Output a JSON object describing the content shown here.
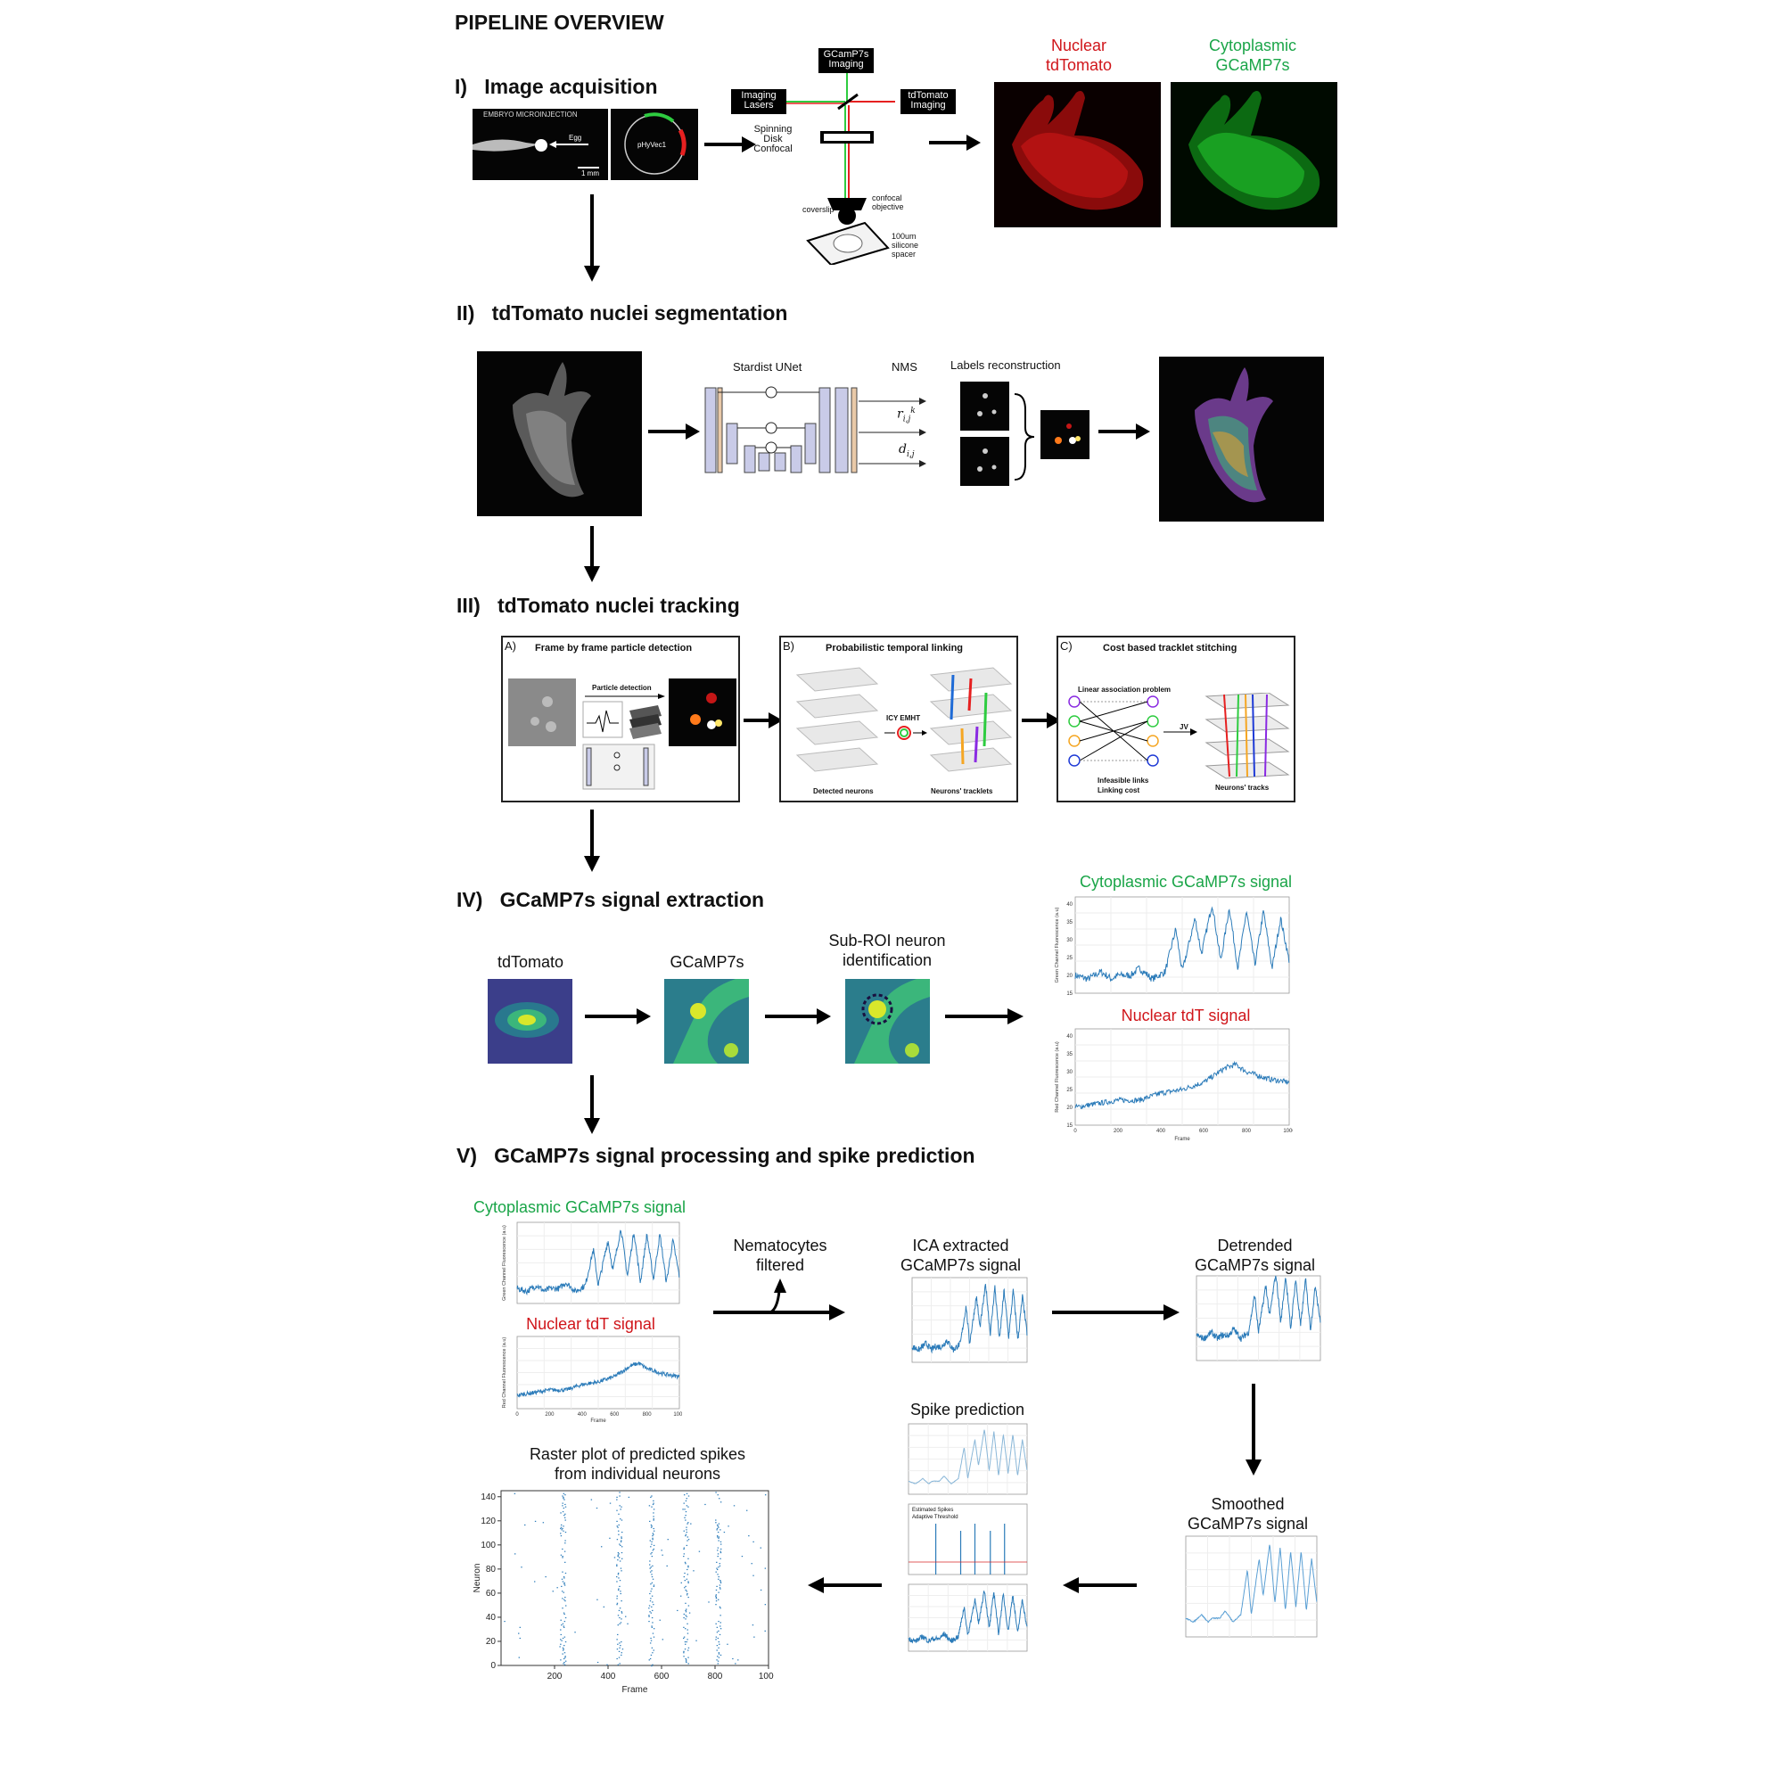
{
  "title": "PIPELINE OVERVIEW",
  "sections": {
    "s1": {
      "num": "I)",
      "label": "Image acquisition"
    },
    "s2": {
      "num": "II)",
      "label": "tdTomato nuclei segmentation"
    },
    "s3": {
      "num": "III)",
      "label": "tdTomato nuclei tracking"
    },
    "s4": {
      "num": "IV)",
      "label": "GCaMP7s signal extraction"
    },
    "s5": {
      "num": "V)",
      "label": "GCaMP7s signal processing and spike prediction"
    }
  },
  "acquisition": {
    "embryo_label": "EMBRYO MICROINJECTION",
    "egg_label": "Egg",
    "scale": "1 mm",
    "plasmid": "pHyVec1",
    "gcamp_imaging": "GCamP7s\nImaging",
    "imaging_lasers": "Imaging\nLasers",
    "tdtomato_imaging": "tdTomato\nImaging",
    "spinning_disk": "Spinning\nDisk\nConfocal",
    "objective": "confocal\nobjective",
    "coverslip": "coverslip",
    "spacer": "100um\nsilicone\nspacer",
    "nuclear_line1": "Nuclear",
    "nuclear_line2": "tdTomato",
    "cyto_line1": "Cytoplasmic",
    "cyto_line2": "GCaMP7s"
  },
  "segmentation": {
    "stardist": "Stardist UNet",
    "nms": "NMS",
    "labels": "Labels reconstruction",
    "r_sym": "r",
    "d_sym": "d"
  },
  "tracking": {
    "a_tag": "A)",
    "a_title": "Frame by frame particle detection",
    "a_sub": "Particle detection",
    "b_tag": "B)",
    "b_title": "Probabilistic temporal linking",
    "b_mid": "ICY EMHT",
    "b_left": "Detected neurons",
    "b_right": "Neurons' tracklets",
    "c_tag": "C)",
    "c_title": "Cost based tracklet stitching",
    "c_sub": "Linear association problem",
    "c_jv": "JV",
    "c_infeasible": "Infeasible links",
    "c_cost": "Linking cost",
    "c_right": "Neurons' tracks"
  },
  "extraction": {
    "tdtomato": "tdTomato",
    "gcamp": "GCaMP7s",
    "subroi": "Sub-ROI neuron\nidentification",
    "cyto_signal": "Cytoplasmic GCaMP7s signal",
    "nuc_signal": "Nuclear tdT signal",
    "x_label": "Frame",
    "y_green": "Green Channel Fluorescence (a.u)",
    "y_red": "Red Channel Fluorescence (a.u)",
    "green_ticks": [
      "15",
      "20",
      "25",
      "30",
      "35",
      "40"
    ],
    "red_ticks": [
      "15",
      "20",
      "25",
      "30",
      "35",
      "40"
    ],
    "x_ticks": [
      "0",
      "200",
      "400",
      "600",
      "800",
      "1000"
    ]
  },
  "processing": {
    "cyto_signal": "Cytoplasmic GCaMP7s signal",
    "nuc_signal": "Nuclear tdT signal",
    "nematocytes": "Nematocytes\nfiltered",
    "ica": "ICA extracted\nGCaMP7s signal",
    "detrended": "Detrended\nGCaMP7s signal",
    "smoothed": "Smoothed\nGCaMP7s signal",
    "spike_pred": "Spike prediction",
    "legend_est": "Estimated Spikes",
    "legend_thr": "Adaptive Threshold",
    "raster_title": "Raster plot of predicted spikes\nfrom individual neurons",
    "raster_x_label": "Frame",
    "raster_y_label": "Neuron"
  },
  "chart_data": [
    {
      "type": "line",
      "title": "Cytoplasmic GCaMP7s signal",
      "xlabel": "",
      "ylabel": "Green Channel Fluorescence (a.u)",
      "xlim": [
        0,
        1000
      ],
      "ylim": [
        15,
        42
      ],
      "x": [
        0,
        60,
        120,
        170,
        200,
        260,
        300,
        360,
        420,
        470,
        500,
        560,
        590,
        640,
        680,
        720,
        760,
        800,
        840,
        880,
        920,
        960,
        1000
      ],
      "series": [
        {
          "values": [
            20,
            19,
            21,
            19,
            20,
            20,
            22,
            19,
            21,
            33,
            21,
            36,
            26,
            40,
            24,
            39,
            22,
            38,
            23,
            38,
            22,
            36,
            24
          ]
        }
      ]
    },
    {
      "type": "line",
      "title": "Nuclear tdT signal",
      "xlabel": "Frame",
      "ylabel": "Red Channel Fluorescence (a.u)",
      "xlim": [
        0,
        1000
      ],
      "ylim": [
        15,
        42
      ],
      "x": [
        0,
        100,
        200,
        300,
        400,
        500,
        600,
        650,
        700,
        750,
        800,
        900,
        1000
      ],
      "series": [
        {
          "values": [
            20,
            21,
            22,
            22,
            24,
            25,
            27,
            29,
            31,
            32,
            30,
            28,
            27
          ]
        }
      ]
    },
    {
      "type": "scatter",
      "title": "Raster plot of predicted spikes from individual neurons",
      "xlabel": "Frame",
      "ylabel": "Neuron",
      "xlim": [
        0,
        1000
      ],
      "ylim": [
        0,
        145
      ],
      "xticks": [
        200,
        400,
        600,
        800,
        1000
      ],
      "yticks": [
        0,
        20,
        40,
        60,
        80,
        100,
        120,
        140
      ],
      "burst_frames": [
        230,
        440,
        560,
        690,
        810
      ]
    }
  ]
}
